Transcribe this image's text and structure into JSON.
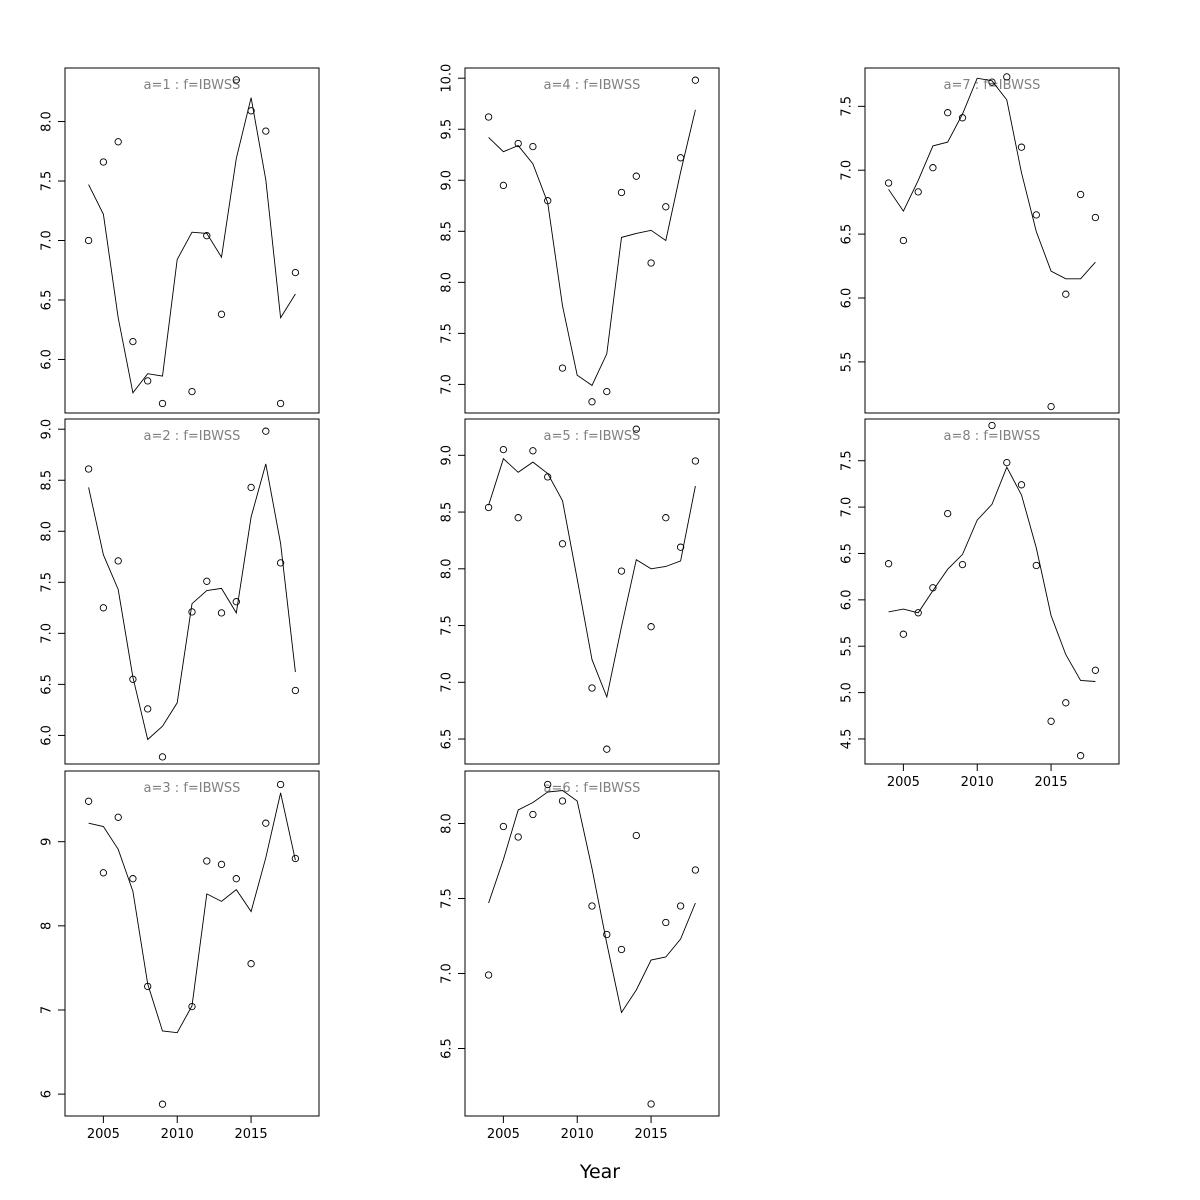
{
  "figure": {
    "xlabel": "Year"
  },
  "chart_data": [
    {
      "type": "line",
      "title": "a=1  :  f=IBWSS",
      "x": [
        2004,
        2005,
        2006,
        2007,
        2008,
        2009,
        2010,
        2011,
        2012,
        2013,
        2014,
        2015,
        2016,
        2017,
        2018
      ],
      "observed": [
        7.0,
        7.66,
        7.83,
        6.15,
        5.82,
        5.63,
        null,
        5.73,
        7.04,
        6.38,
        8.35,
        8.09,
        7.92,
        5.63,
        6.73
      ],
      "fitted": [
        7.47,
        7.22,
        6.35,
        5.72,
        5.88,
        5.86,
        6.84,
        7.07,
        7.06,
        6.86,
        7.69,
        8.2,
        7.51,
        6.35,
        6.55
      ],
      "xlim": [
        2002.4,
        2019.6
      ],
      "ylim": [
        5.55,
        8.45
      ],
      "yticks": [
        6.0,
        6.5,
        7.0,
        7.5,
        8.0
      ],
      "xticks": [],
      "xtick_labels": []
    },
    {
      "type": "line",
      "title": "a=2  :  f=IBWSS",
      "x": [
        2004,
        2005,
        2006,
        2007,
        2008,
        2009,
        2010,
        2011,
        2012,
        2013,
        2014,
        2015,
        2016,
        2017,
        2018
      ],
      "observed": [
        8.61,
        7.25,
        7.71,
        6.55,
        6.26,
        5.79,
        null,
        7.21,
        7.51,
        7.2,
        7.31,
        8.43,
        8.98,
        7.69,
        6.44
      ],
      "fitted": [
        8.43,
        7.77,
        7.43,
        6.57,
        5.96,
        6.09,
        6.32,
        7.29,
        7.42,
        7.44,
        7.2,
        8.14,
        8.66,
        7.88,
        6.62
      ],
      "xlim": [
        2002.4,
        2019.6
      ],
      "ylim": [
        5.72,
        9.1
      ],
      "yticks": [
        6.0,
        6.5,
        7.0,
        7.5,
        8.0,
        8.5,
        9.0
      ],
      "xticks": [],
      "xtick_labels": []
    },
    {
      "type": "line",
      "title": "a=3  :  f=IBWSS",
      "x": [
        2004,
        2005,
        2006,
        2007,
        2008,
        2009,
        2010,
        2011,
        2012,
        2013,
        2014,
        2015,
        2016,
        2017,
        2018
      ],
      "observed": [
        9.48,
        8.63,
        9.29,
        8.56,
        7.28,
        5.88,
        null,
        7.04,
        8.77,
        8.73,
        8.56,
        7.55,
        9.22,
        9.68,
        8.8
      ],
      "fitted": [
        9.22,
        9.18,
        8.91,
        8.41,
        7.31,
        6.75,
        6.73,
        7.05,
        8.38,
        8.29,
        8.43,
        8.17,
        8.81,
        9.58,
        8.78
      ],
      "xlim": [
        2002.4,
        2019.6
      ],
      "ylim": [
        5.74,
        9.84
      ],
      "yticks": [
        6,
        7,
        8,
        9
      ],
      "xticks": [
        2005,
        2010,
        2015
      ],
      "xtick_labels": [
        "2005",
        "2010",
        "2015"
      ]
    },
    {
      "type": "line",
      "title": "a=4  :  f=IBWSS",
      "x": [
        2004,
        2005,
        2006,
        2007,
        2008,
        2009,
        2010,
        2011,
        2012,
        2013,
        2014,
        2015,
        2016,
        2017,
        2018
      ],
      "observed": [
        9.62,
        8.95,
        9.36,
        9.33,
        8.8,
        7.16,
        null,
        6.83,
        6.93,
        8.88,
        9.04,
        8.19,
        8.74,
        9.22,
        9.98
      ],
      "fitted": [
        9.42,
        9.28,
        9.34,
        9.16,
        8.78,
        7.77,
        7.09,
        6.99,
        7.3,
        8.44,
        8.48,
        8.51,
        8.41,
        9.08,
        9.69
      ],
      "xlim": [
        2002.4,
        2019.6
      ],
      "ylim": [
        6.72,
        10.1
      ],
      "yticks": [
        7.0,
        7.5,
        8.0,
        8.5,
        9.0,
        9.5,
        10.0
      ],
      "xticks": [],
      "xtick_labels": []
    },
    {
      "type": "line",
      "title": "a=5  :  f=IBWSS",
      "x": [
        2004,
        2005,
        2006,
        2007,
        2008,
        2009,
        2010,
        2011,
        2012,
        2013,
        2014,
        2015,
        2016,
        2017,
        2018
      ],
      "observed": [
        8.54,
        9.05,
        8.45,
        9.04,
        8.81,
        8.22,
        null,
        6.95,
        6.41,
        7.98,
        9.23,
        7.49,
        8.45,
        8.19,
        8.95
      ],
      "fitted": [
        8.56,
        8.97,
        8.85,
        8.94,
        8.84,
        8.6,
        7.91,
        7.2,
        6.87,
        7.49,
        8.08,
        8.0,
        8.02,
        8.07,
        8.73
      ],
      "xlim": [
        2002.4,
        2019.6
      ],
      "ylim": [
        6.28,
        9.32
      ],
      "yticks": [
        6.5,
        7.0,
        7.5,
        8.0,
        8.5,
        9.0
      ],
      "xticks": [],
      "xtick_labels": []
    },
    {
      "type": "line",
      "title": "a=6  :  f=IBWSS",
      "x": [
        2004,
        2005,
        2006,
        2007,
        2008,
        2009,
        2010,
        2011,
        2012,
        2013,
        2014,
        2015,
        2016,
        2017,
        2018
      ],
      "observed": [
        6.99,
        7.98,
        7.91,
        8.06,
        8.26,
        8.15,
        null,
        7.45,
        7.26,
        7.16,
        7.92,
        6.13,
        7.34,
        7.45,
        7.69
      ],
      "fitted": [
        7.47,
        7.76,
        8.09,
        8.14,
        8.21,
        8.22,
        8.15,
        7.7,
        7.2,
        6.74,
        6.89,
        7.09,
        7.11,
        7.23,
        7.47
      ],
      "xlim": [
        2002.4,
        2019.6
      ],
      "ylim": [
        6.05,
        8.35
      ],
      "yticks": [
        6.5,
        7.0,
        7.5,
        8.0
      ],
      "xticks": [
        2005,
        2010,
        2015
      ],
      "xtick_labels": [
        "2005",
        "2010",
        "2015"
      ]
    },
    {
      "type": "line",
      "title": "a=7  :  f=IBWSS",
      "x": [
        2004,
        2005,
        2006,
        2007,
        2008,
        2009,
        2010,
        2011,
        2012,
        2013,
        2014,
        2015,
        2016,
        2017,
        2018
      ],
      "observed": [
        6.9,
        6.45,
        6.83,
        7.02,
        7.45,
        7.41,
        null,
        7.69,
        7.73,
        7.18,
        6.65,
        5.15,
        6.03,
        6.81,
        6.63
      ],
      "fitted": [
        6.85,
        6.68,
        6.92,
        7.19,
        7.22,
        7.44,
        7.72,
        7.7,
        7.55,
        6.98,
        6.52,
        6.21,
        6.15,
        6.15,
        6.28
      ],
      "xlim": [
        2002.4,
        2019.6
      ],
      "ylim": [
        5.1,
        7.8
      ],
      "yticks": [
        5.5,
        6.0,
        6.5,
        7.0,
        7.5
      ],
      "xticks": [],
      "xtick_labels": []
    },
    {
      "type": "line",
      "title": "a=8  :  f=IBWSS",
      "x": [
        2004,
        2005,
        2006,
        2007,
        2008,
        2009,
        2010,
        2011,
        2012,
        2013,
        2014,
        2015,
        2016,
        2017,
        2018
      ],
      "observed": [
        6.39,
        5.63,
        5.86,
        6.13,
        6.93,
        6.38,
        null,
        7.88,
        7.48,
        7.24,
        6.37,
        4.69,
        4.89,
        4.32,
        5.24
      ],
      "fitted": [
        5.87,
        5.9,
        5.86,
        6.1,
        6.33,
        6.49,
        6.86,
        7.03,
        7.43,
        7.13,
        6.56,
        5.83,
        5.41,
        5.13,
        5.12
      ],
      "xlim": [
        2002.4,
        2019.6
      ],
      "ylim": [
        4.23,
        7.95
      ],
      "yticks": [
        4.5,
        5.0,
        5.5,
        6.0,
        6.5,
        7.0,
        7.5
      ],
      "xticks": [
        2005,
        2010,
        2015
      ],
      "xtick_labels": [
        "2005",
        "2010",
        "2015"
      ]
    }
  ]
}
